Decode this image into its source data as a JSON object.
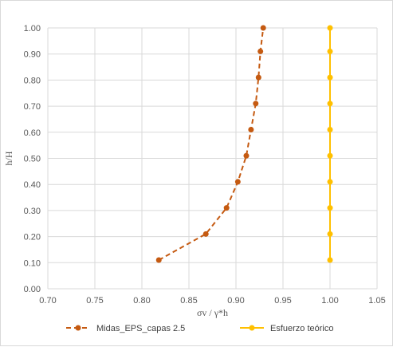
{
  "chart_data": {
    "type": "scatter",
    "xlabel": "σv / γ*h",
    "ylabel": "h/H",
    "xlim": [
      0.7,
      1.05
    ],
    "ylim": [
      0.0,
      1.0
    ],
    "x_ticks": [
      "0.70",
      "0.75",
      "0.80",
      "0.85",
      "0.90",
      "0.95",
      "1.00",
      "1.05"
    ],
    "y_ticks": [
      "0.00",
      "0.10",
      "0.20",
      "0.30",
      "0.40",
      "0.50",
      "0.60",
      "0.70",
      "0.80",
      "0.90",
      "1.00"
    ],
    "grid": true,
    "legend_position": "bottom",
    "series": [
      {
        "name": "Midas_EPS_capas 2.5",
        "color": "#C55A11",
        "line_style": "dashed",
        "marker": "circle",
        "x": [
          0.818,
          0.868,
          0.89,
          0.902,
          0.911,
          0.916,
          0.921,
          0.924,
          0.926,
          0.929
        ],
        "y": [
          0.11,
          0.21,
          0.31,
          0.41,
          0.51,
          0.61,
          0.71,
          0.81,
          0.91,
          1.0
        ]
      },
      {
        "name": "Esfuerzo teórico",
        "color": "#FFC000",
        "line_style": "solid",
        "marker": "circle",
        "x": [
          1.0,
          1.0,
          1.0,
          1.0,
          1.0,
          1.0,
          1.0,
          1.0,
          1.0,
          1.0
        ],
        "y": [
          0.11,
          0.21,
          0.31,
          0.41,
          0.51,
          0.61,
          0.71,
          0.81,
          0.91,
          1.0
        ]
      }
    ]
  }
}
